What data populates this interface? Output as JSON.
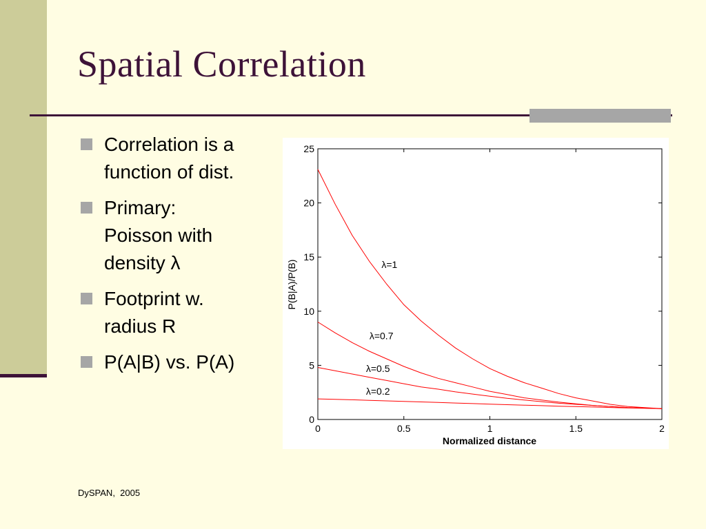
{
  "slide": {
    "title": "Spatial Correlation",
    "footer": "DySPAN,  2005"
  },
  "bullets": [
    {
      "text": "Correlation is a\nfunction of dist."
    },
    {
      "text": "Primary:\nPoisson with\ndensity λ"
    },
    {
      "text": "Footprint w.\nradius R"
    },
    {
      "text": "P(A|B) vs. P(A)"
    }
  ],
  "colors": {
    "title": "#3D1238",
    "band": "#CCCC99",
    "accent": "#A6A6A6",
    "series": "#FF0000"
  },
  "chart_data": {
    "type": "line",
    "xlabel": "Normalized distance",
    "ylabel": "P(B|A)/P(B)",
    "xlim": [
      0,
      2
    ],
    "ylim": [
      0,
      25
    ],
    "xticks": [
      "0",
      "0.5",
      "1",
      "1.5",
      "2"
    ],
    "yticks": [
      "0",
      "5",
      "10",
      "15",
      "20",
      "25"
    ],
    "grid": false,
    "x": [
      0,
      0.1,
      0.2,
      0.3,
      0.4,
      0.5,
      0.6,
      0.7,
      0.8,
      0.9,
      1.0,
      1.1,
      1.2,
      1.3,
      1.4,
      1.5,
      1.6,
      1.7,
      1.8,
      1.9,
      2.0
    ],
    "series": [
      {
        "name": "λ=1",
        "values": [
          23.1,
          19.9,
          17.0,
          14.6,
          12.5,
          10.6,
          9.1,
          7.8,
          6.6,
          5.6,
          4.7,
          4.0,
          3.4,
          2.9,
          2.4,
          2.0,
          1.7,
          1.4,
          1.2,
          1.1,
          1.0
        ],
        "label_at": [
          0.37,
          14.0
        ]
      },
      {
        "name": "λ=0.7",
        "values": [
          9.0,
          8.0,
          7.1,
          6.3,
          5.6,
          4.9,
          4.3,
          3.8,
          3.4,
          3.0,
          2.6,
          2.3,
          2.0,
          1.8,
          1.6,
          1.45,
          1.3,
          1.2,
          1.1,
          1.05,
          1.0
        ],
        "label_at": [
          0.3,
          7.4
        ]
      },
      {
        "name": "λ=0.5",
        "values": [
          4.8,
          4.5,
          4.2,
          3.9,
          3.6,
          3.3,
          3.0,
          2.8,
          2.55,
          2.35,
          2.15,
          1.95,
          1.8,
          1.65,
          1.5,
          1.4,
          1.3,
          1.2,
          1.1,
          1.05,
          1.0
        ],
        "label_at": [
          0.28,
          4.4
        ]
      },
      {
        "name": "λ=0.2",
        "values": [
          1.9,
          1.86,
          1.82,
          1.77,
          1.72,
          1.67,
          1.62,
          1.57,
          1.52,
          1.47,
          1.42,
          1.37,
          1.32,
          1.28,
          1.23,
          1.19,
          1.15,
          1.11,
          1.07,
          1.03,
          1.0
        ],
        "label_at": [
          0.28,
          2.3
        ]
      }
    ]
  }
}
